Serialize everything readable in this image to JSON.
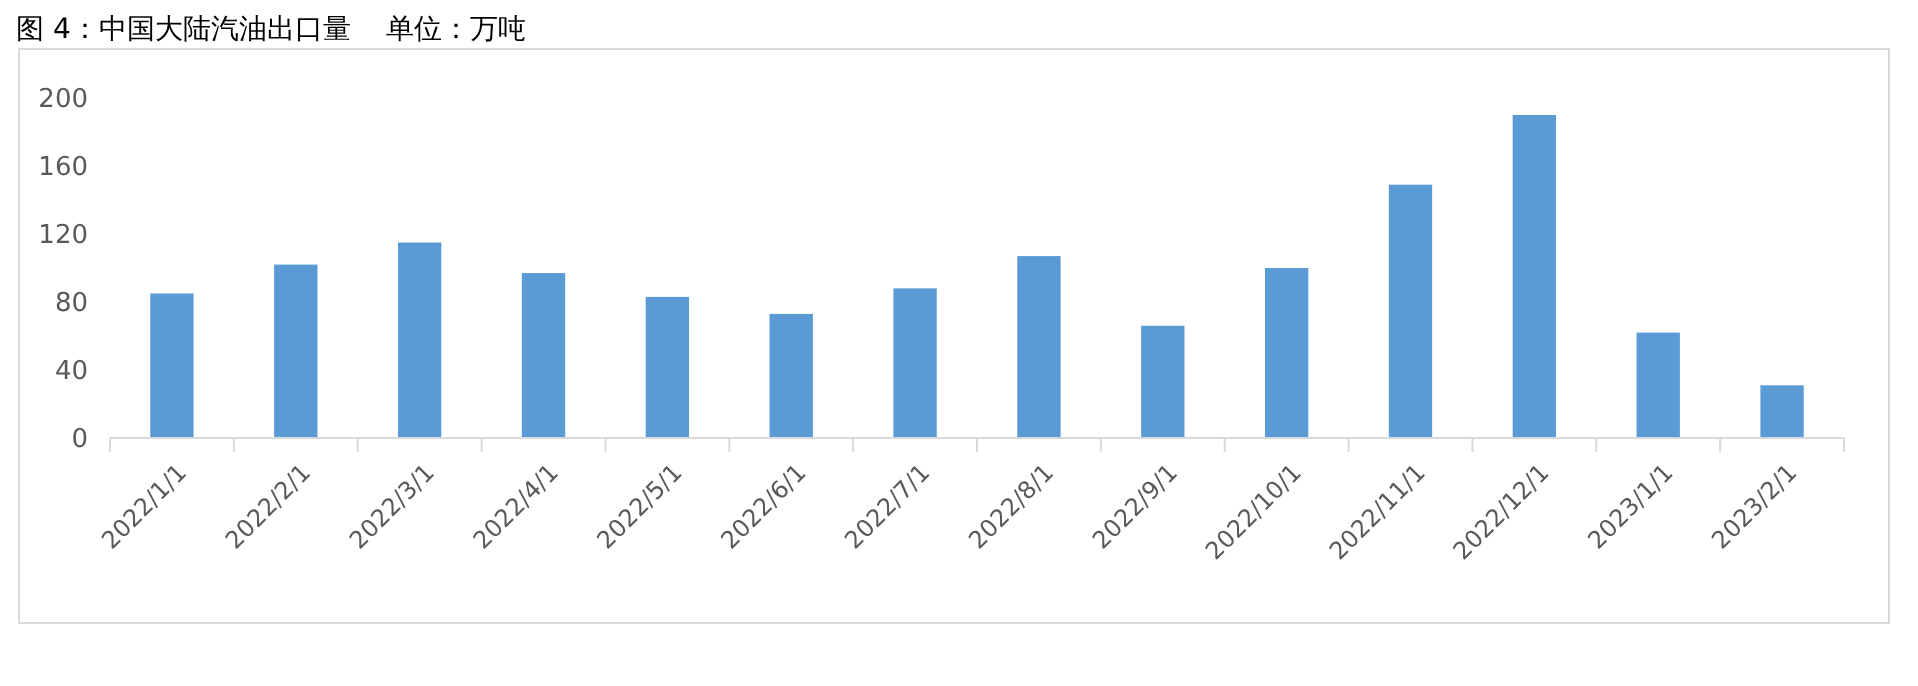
{
  "chart_data": {
    "type": "bar",
    "title": "图 4：中国大陆汽油出口量    单位：万吨",
    "categories": [
      "2022/1/1",
      "2022/2/1",
      "2022/3/1",
      "2022/4/1",
      "2022/5/1",
      "2022/6/1",
      "2022/7/1",
      "2022/8/1",
      "2022/9/1",
      "2022/10/1",
      "2022/11/1",
      "2022/12/1",
      "2023/1/1",
      "2023/2/1"
    ],
    "values": [
      85,
      102,
      115,
      97,
      83,
      73,
      88,
      107,
      66,
      100,
      149,
      190,
      62,
      31
    ],
    "color": "#5b9bd5",
    "ylim": [
      0,
      200
    ],
    "yticks": [
      0,
      40,
      80,
      120,
      160,
      200
    ],
    "grid": false
  }
}
